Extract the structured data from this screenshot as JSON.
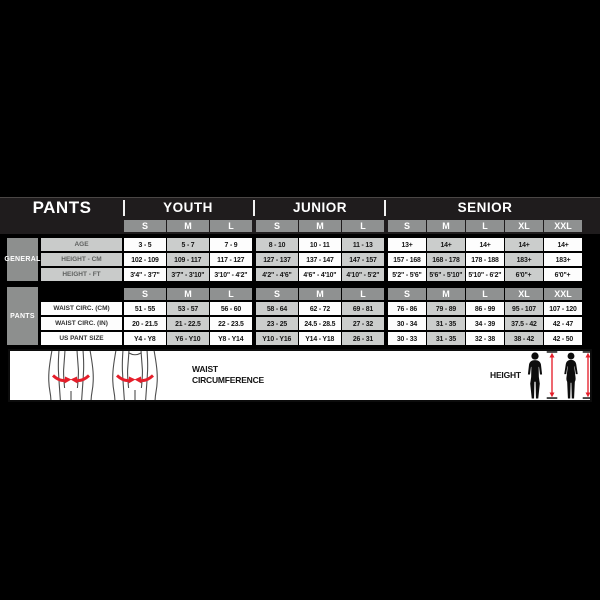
{
  "chart_data": {
    "type": "table",
    "title": "PANTS",
    "column_groups": [
      {
        "label": "YOUTH",
        "sizes": [
          "S",
          "M",
          "L"
        ]
      },
      {
        "label": "JUNIOR",
        "sizes": [
          "S",
          "M",
          "L"
        ]
      },
      {
        "label": "SENIOR",
        "sizes": [
          "S",
          "M",
          "L",
          "XL",
          "XXL"
        ]
      }
    ],
    "sections": [
      {
        "label": "GENERAL",
        "label_style": "gray",
        "size_header": false,
        "rows": [
          {
            "label": "AGE",
            "values": [
              "3 - 5",
              "5 - 7",
              "7 - 9",
              "8 - 10",
              "10 - 11",
              "11 - 13",
              "13+",
              "14+",
              "14+",
              "14+",
              "14+"
            ]
          },
          {
            "label": "HEIGHT - CM",
            "values": [
              "102 - 109",
              "109 - 117",
              "117 - 127",
              "127 - 137",
              "137 - 147",
              "147 - 157",
              "157 - 168",
              "168 - 178",
              "178 - 188",
              "183+",
              "183+"
            ]
          },
          {
            "label": "HEIGHT - FT",
            "values": [
              "3'4\" - 3'7\"",
              "3'7\" - 3'10\"",
              "3'10\" - 4'2\"",
              "4'2\" - 4'6\"",
              "4'6\" - 4'10\"",
              "4'10\" - 5'2\"",
              "5'2\" - 5'6\"",
              "5'6\" - 5'10\"",
              "5'10\" - 6'2\"",
              "6'0\"+",
              "6'0\"+"
            ]
          }
        ]
      },
      {
        "label": "PANTS",
        "label_style": "white",
        "size_header": true,
        "rows": [
          {
            "label": "WAIST CIRC. (CM)",
            "values": [
              "51 - 55",
              "53 - 57",
              "56 - 60",
              "58 - 64",
              "62 - 72",
              "69 - 81",
              "76 - 86",
              "79 - 89",
              "86 - 99",
              "95 - 107",
              "107 - 120"
            ]
          },
          {
            "label": "WAIST CIRC. (IN)",
            "values": [
              "20 - 21.5",
              "21 - 22.5",
              "22 - 23.5",
              "23 - 25",
              "24.5 - 28.5",
              "27 - 32",
              "30 - 34",
              "31 - 35",
              "34 - 39",
              "37.5 - 42",
              "42 - 47"
            ]
          },
          {
            "label": "US PANT SIZE",
            "values": [
              "Y4 - Y8",
              "Y6 - Y10",
              "Y8 - Y14",
              "Y10 - Y16",
              "Y14 - Y18",
              "26 - 31",
              "30 - 33",
              "31 - 35",
              "32 - 38",
              "38 - 42",
              "42 - 50"
            ]
          }
        ]
      }
    ]
  },
  "legend": {
    "waist_label": "WAIST CIRCUMFERENCE",
    "height_label": "HEIGHT"
  },
  "colors": {
    "background": "#000000",
    "header_bg": "#1f1c1d",
    "size_box_gray": "#8f9191",
    "section_label_gray": "#8d8f8e",
    "row_label_gray": "#c9cbca",
    "cell_gray": "#cbcdcc",
    "cell_white": "#fdfdfd",
    "accent_red": "#e51e2a"
  }
}
